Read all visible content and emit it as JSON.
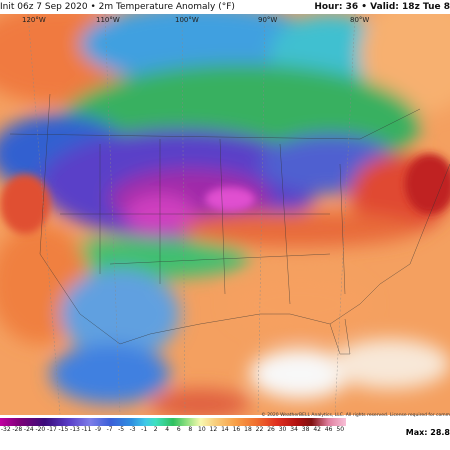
{
  "header": {
    "title": "Init 06z 7 Sep 2020 • 2m Temperature Anomaly (°F)",
    "valid": "Hour: 36 • Valid: 18z Tue 8"
  },
  "map": {
    "longitudes": [
      "120°W",
      "110°W",
      "100°W",
      "90°W",
      "80°W"
    ]
  },
  "colorbar": {
    "labels": [
      -32,
      -28,
      -24,
      -20,
      -17,
      -15,
      -13,
      -11,
      -9,
      -7,
      -5,
      -3,
      -1,
      2,
      4,
      6,
      8,
      10,
      12,
      14,
      16,
      18,
      22,
      26,
      30,
      34,
      38,
      42,
      46,
      50
    ]
  },
  "footer": {
    "copyright": "© 2020 WeatherBELL Analytics, LLC. All rights reserved. License required for comm",
    "max": "Max: 28.8"
  }
}
